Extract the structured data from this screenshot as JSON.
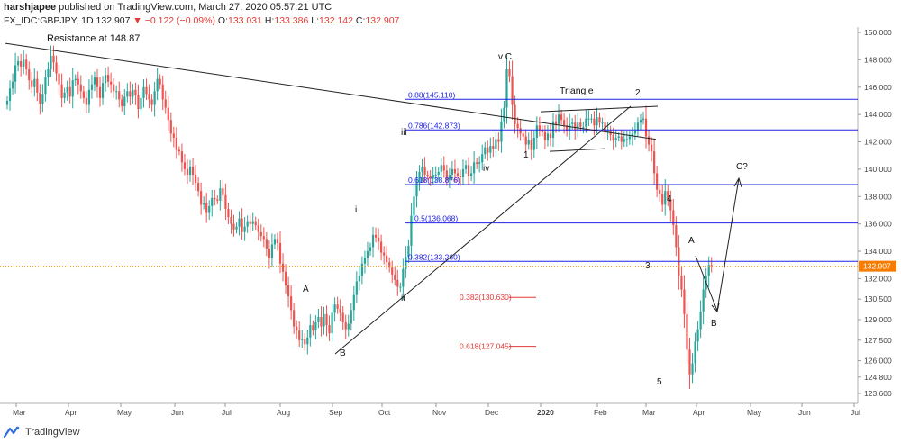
{
  "header": {
    "author": "harshjapee",
    "published_text": "published on TradingView.com, March 27, 2020 05:57:21 UTC",
    "symbol": "FX_IDC:GBPJPY, 1D",
    "last": "132.907",
    "change": "−0.122 (−0.09%)",
    "o_label": "O:",
    "o_value": "133.031",
    "h_label": "H:",
    "h_value": "133.386",
    "l_label": "L:",
    "l_value": "132.142",
    "c_label": "C:",
    "c_value": "132.907"
  },
  "footer": {
    "brand": "TradingView"
  },
  "colors": {
    "up": "#26a69a",
    "down": "#ef5350",
    "fib_blue": "#1e22e8",
    "fib_red": "#e53935",
    "price_line": "#ff9800",
    "price_badge": "#f57c00",
    "annotation": "#111111"
  },
  "chart_data": {
    "type": "candlestick",
    "y_axis_ticks": [
      "150.000",
      "148.000",
      "146.000",
      "144.000",
      "142.000",
      "140.000",
      "138.000",
      "136.000",
      "134.000",
      "132.000",
      "130.500",
      "129.000",
      "127.500",
      "126.000",
      "124.800",
      "123.600"
    ],
    "ylim": [
      122.8,
      150.6
    ],
    "x_axis_labels": [
      "Mar",
      "Apr",
      "May",
      "Jun",
      "Jul",
      "Aug",
      "Sep",
      "Oct",
      "Nov",
      "Dec",
      "2020",
      "Feb",
      "Mar",
      "Apr",
      "May",
      "Jun",
      "Jul"
    ],
    "last_price": 132.907,
    "last_price_label": "132.907",
    "candles_close": [
      145.0,
      145.9,
      146.4,
      147.6,
      147.9,
      147.5,
      148.0,
      147.3,
      146.5,
      146.0,
      146.6,
      145.6,
      144.8,
      145.5,
      146.7,
      147.3,
      148.3,
      147.8,
      147.0,
      146.2,
      145.2,
      145.6,
      146.0,
      145.3,
      146.5,
      146.6,
      146.2,
      145.7,
      145.2,
      144.7,
      145.8,
      146.2,
      146.7,
      146.0,
      145.2,
      146.3,
      146.9,
      146.4,
      146.2,
      145.7,
      145.7,
      145.1,
      144.6,
      145.3,
      145.7,
      145.3,
      145.8,
      145.4,
      144.4,
      145.2,
      146.0,
      145.5,
      145.1,
      144.7,
      145.7,
      146.6,
      146.2,
      145.1,
      144.5,
      143.6,
      142.6,
      142.3,
      141.4,
      141.3,
      140.5,
      140.0,
      139.6,
      140.2,
      139.6,
      139.0,
      138.4,
      137.4,
      137.5,
      136.8,
      137.3,
      137.9,
      137.8,
      137.7,
      138.6,
      138.1,
      137.1,
      136.5,
      136.0,
      135.6,
      135.8,
      136.4,
      135.4,
      135.8,
      136.2,
      136.0,
      136.2,
      135.9,
      135.4,
      135.1,
      134.9,
      134.2,
      133.5,
      134.5,
      134.9,
      134.6,
      133.1,
      132.5,
      131.5,
      130.7,
      129.7,
      128.5,
      128.2,
      127.5,
      127.6,
      127.2,
      127.7,
      128.6,
      128.2,
      128.8,
      129.2,
      128.5,
      129.4,
      128.6,
      128.0,
      129.5,
      130.1,
      129.8,
      129.5,
      128.8,
      128.3,
      128.7,
      129.7,
      130.8,
      131.8,
      132.2,
      133.1,
      133.5,
      134.0,
      134.3,
      135.2,
      135.0,
      134.7,
      133.9,
      133.7,
      133.2,
      132.8,
      132.3,
      131.9,
      131.4,
      131.4,
      132.7,
      133.6,
      134.4,
      136.6,
      138.0,
      139.0,
      139.8,
      140.2,
      139.6,
      139.5,
      139.3,
      139.6,
      139.6,
      139.8,
      140.3,
      139.9,
      139.2,
      139.6,
      140.0,
      139.7,
      139.5,
      139.4,
      140.0,
      140.3,
      139.5,
      139.7,
      140.5,
      140.4,
      140.5,
      141.1,
      141.6,
      141.2,
      141.7,
      141.5,
      142.2,
      142.0,
      143.5,
      144.5,
      147.3,
      146.8,
      144.7,
      143.3,
      143.0,
      142.6,
      142.4,
      141.8,
      142.1,
      141.4,
      142.3,
      143.2,
      142.9,
      142.7,
      142.1,
      142.6,
      142.3,
      143.5,
      143.3,
      144.0,
      143.6,
      143.2,
      142.8,
      143.3,
      143.4,
      142.9,
      143.4,
      143.1,
      143.1,
      143.7,
      143.7,
      143.7,
      143.2,
      143.8,
      143.4,
      143.4,
      142.7,
      142.8,
      142.5,
      142.1,
      142.3,
      142.4,
      142.0,
      142.2,
      142.2,
      142.4,
      142.6,
      142.8,
      143.4,
      143.6,
      143.7,
      142.4,
      141.8,
      141.3,
      139.7,
      138.5,
      138.2,
      137.4,
      138.4,
      137.8,
      137.0,
      135.9,
      134.3,
      132.2,
      131.2,
      129.4,
      126.8,
      125.0,
      125.8,
      127.4,
      128.3,
      129.6,
      131.2,
      132.2,
      133.0,
      132.9
    ],
    "fib_levels_blue": [
      {
        "label": "0.88(145.110)",
        "value": 145.11
      },
      {
        "label": "0.786(142.873)",
        "value": 142.873
      },
      {
        "label": "0.618(138.876)",
        "value": 138.876
      },
      {
        "label": "0.5(136.068)",
        "value": 136.068
      },
      {
        "label": "0.382(133.260)",
        "value": 133.26
      }
    ],
    "fib_levels_red": [
      {
        "label": "0.382(130.630)",
        "value": 130.63
      },
      {
        "label": "0.618(127.045)",
        "value": 127.045
      }
    ],
    "annotations": {
      "resistance": "Resistance at 148.87",
      "triangle": "Triangle",
      "v_c": "v C",
      "i": "i",
      "ii": "ii",
      "iii": "iii",
      "iv": "iv",
      "w1": "1",
      "w2": "2",
      "w3": "3",
      "w4": "4",
      "w5": "5",
      "a_left": "A",
      "b_left": "B",
      "a_right": "A",
      "b_right": "B",
      "c_future": "C?"
    }
  }
}
